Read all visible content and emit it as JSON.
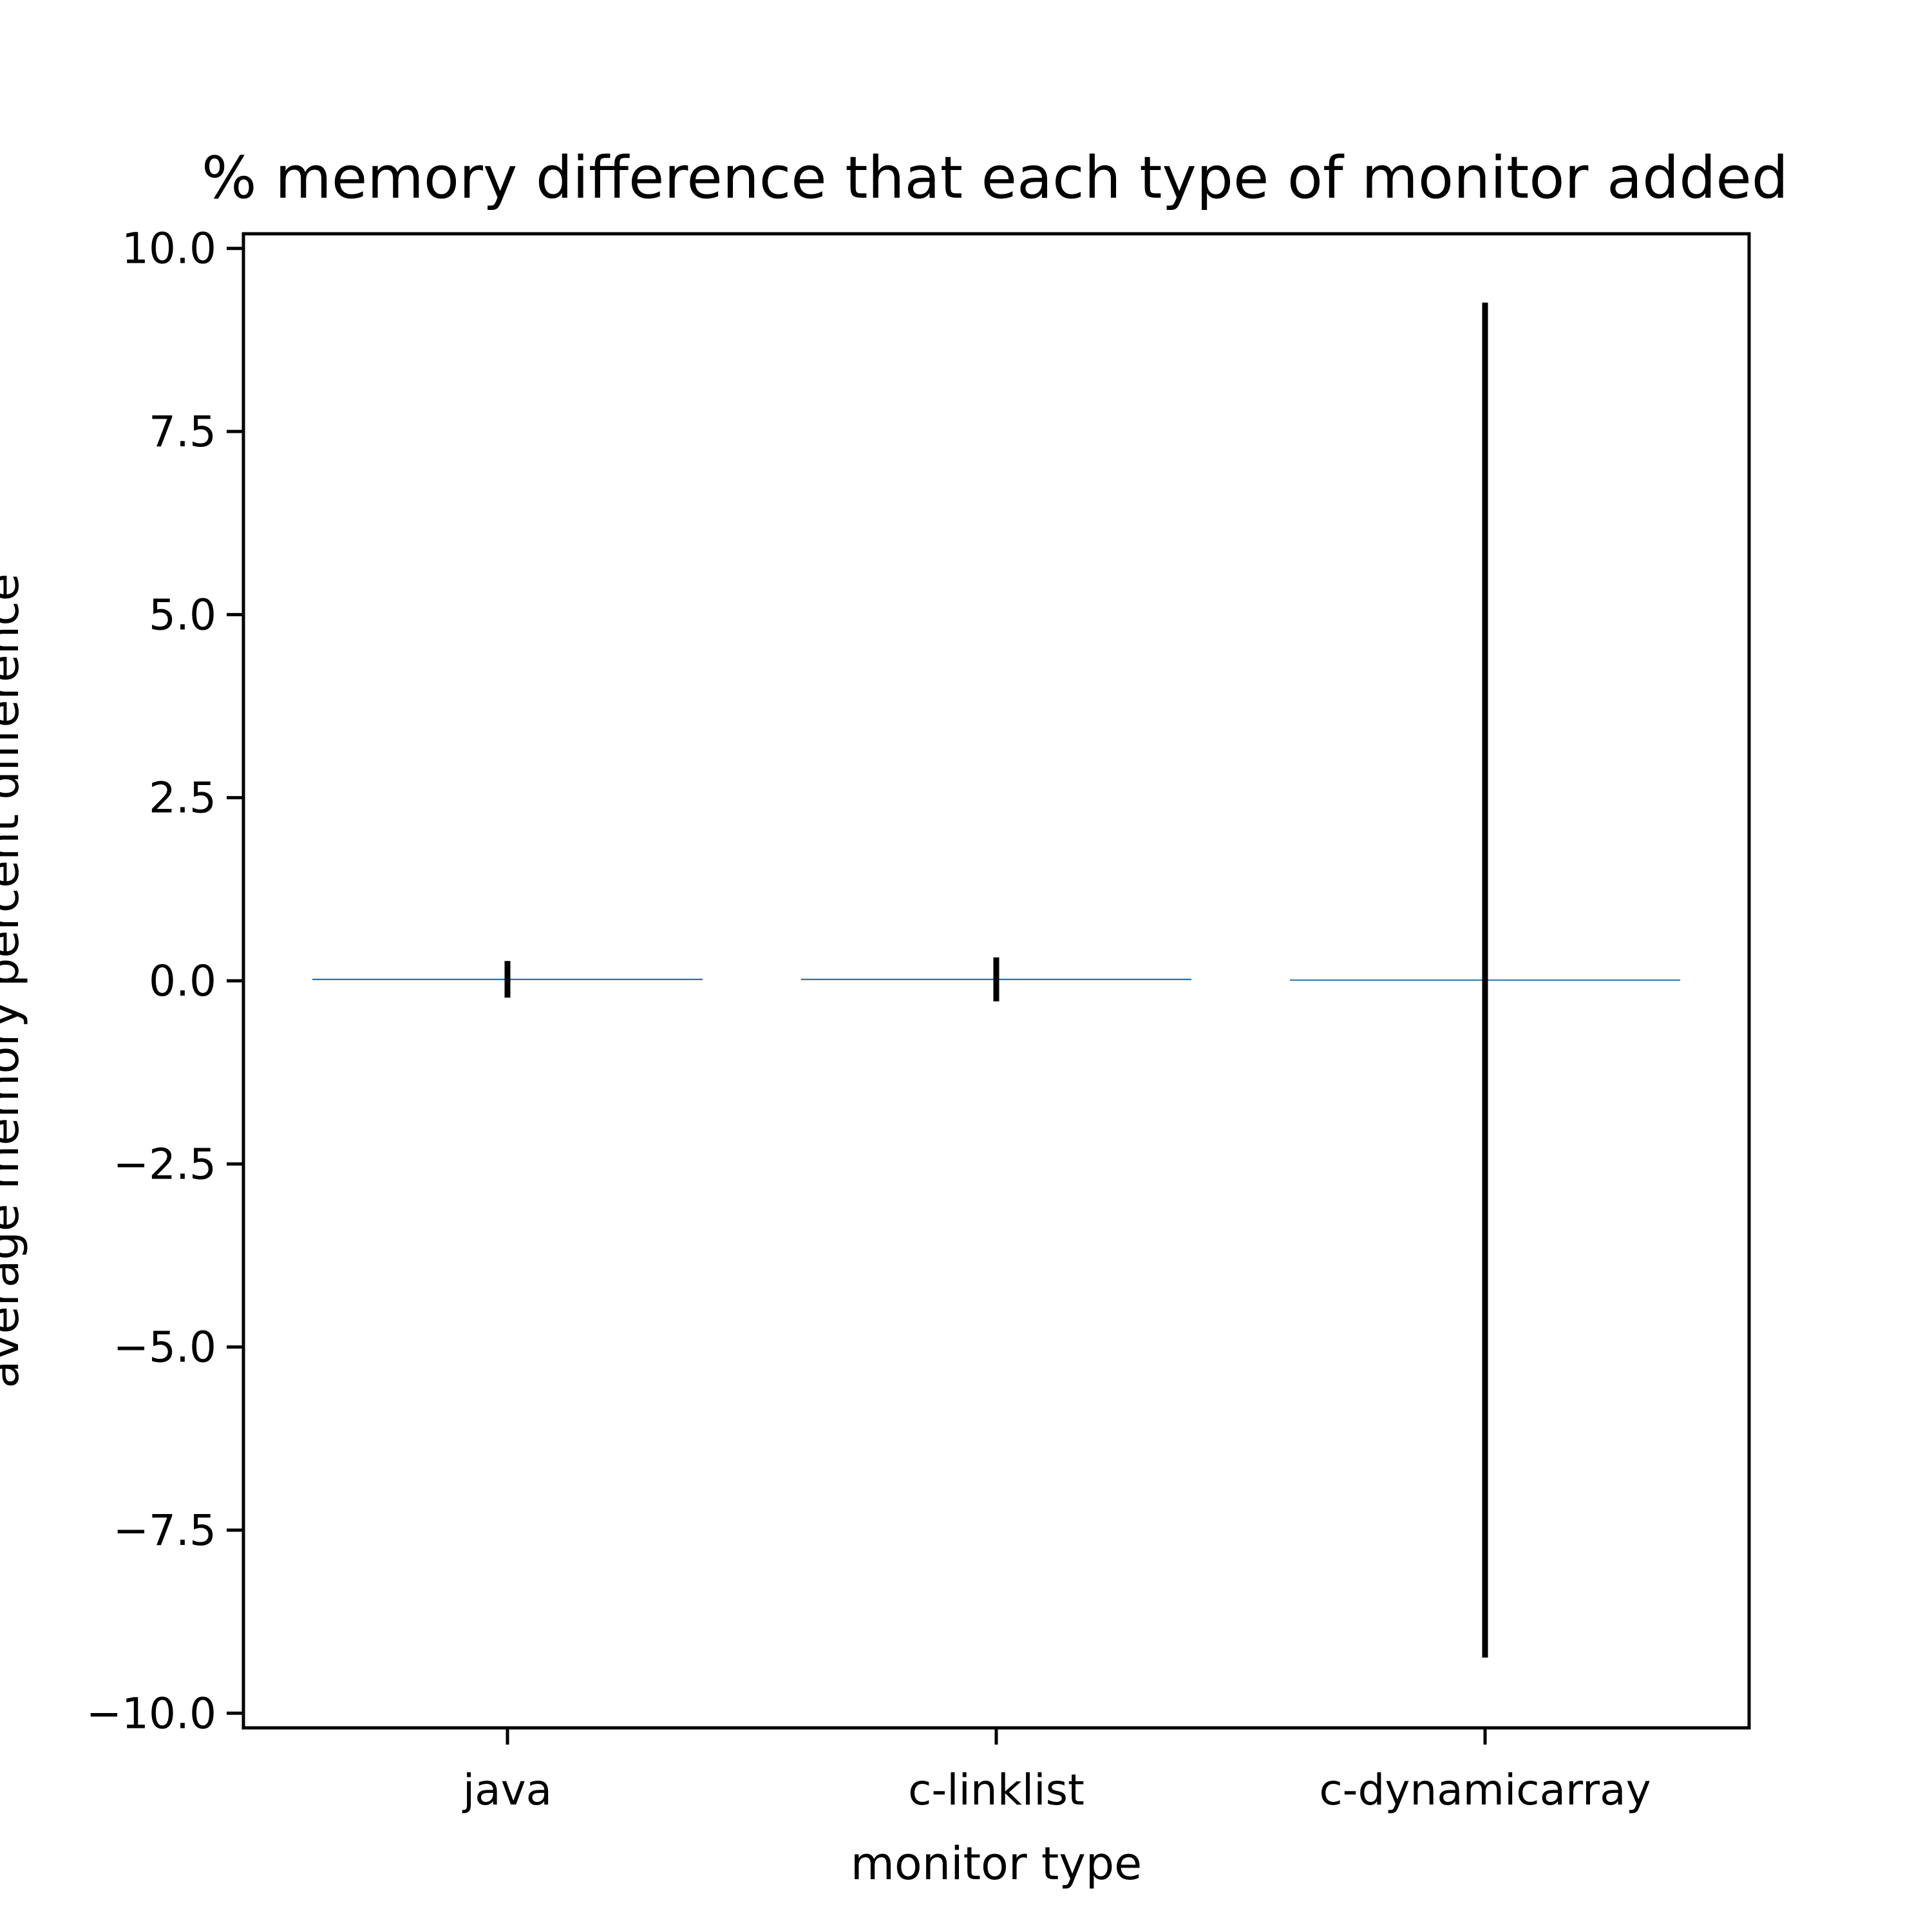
{
  "chart_data": {
    "type": "bar",
    "title": "% memory difference that each type of monitor added",
    "xlabel": "monitor type",
    "ylabel": "average memory percent difference",
    "categories": [
      "java",
      "c-linklist",
      "c-dynamicarray"
    ],
    "values": [
      0.02,
      0.02,
      0.01
    ],
    "error": [
      0.25,
      0.3,
      9.25
    ],
    "ylim": [
      -10.2,
      10.2
    ],
    "yticks": [
      10.0,
      7.5,
      5.0,
      2.5,
      0.0,
      -2.5,
      -5.0,
      -7.5,
      -10.0
    ],
    "ytick_labels": [
      "10.0",
      "7.5",
      "5.0",
      "2.5",
      "0.0",
      "−2.5",
      "−5.0",
      "−7.5",
      "−10.0"
    ],
    "grid": false,
    "colors": {
      "bar": "#1f77b4",
      "errorbar": "#000000",
      "axes": "#000000"
    }
  }
}
